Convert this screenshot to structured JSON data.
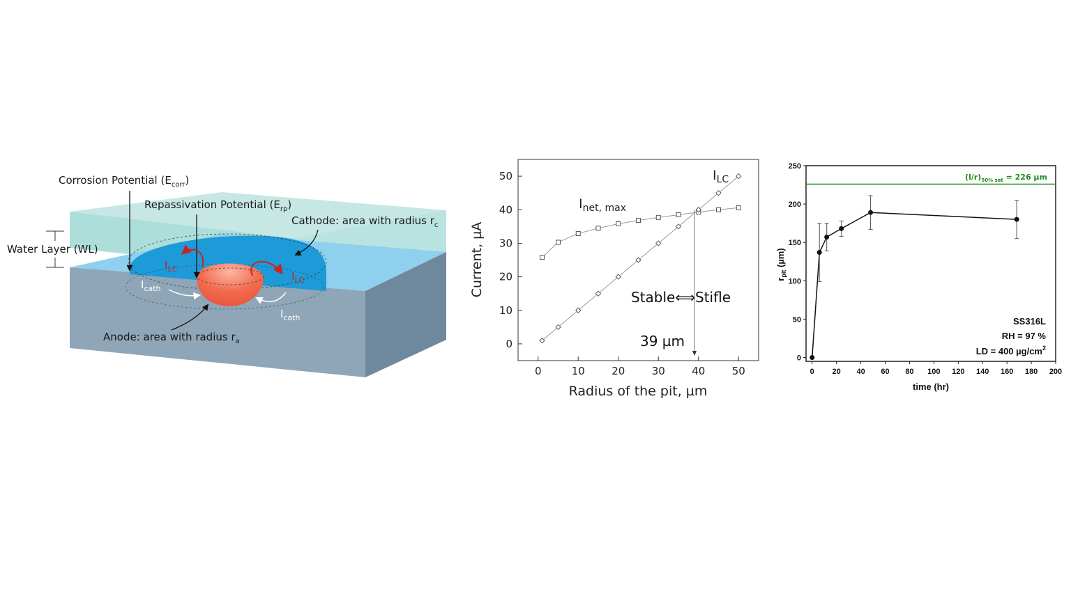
{
  "diagram": {
    "corrosion_potential": "Corrosion Potential (E",
    "corrosion_sub": "corr",
    "corrosion_close": ")",
    "repassivation_potential": "Repassivation Potential (E",
    "repassivation_sub": "rp",
    "repassivation_close": ")",
    "water_layer": "Water Layer (WL)",
    "cathode": "Cathode: area with radius r",
    "cathode_sub": "c",
    "anode": "Anode: area with radius r",
    "anode_sub": "a",
    "i_main": "I",
    "i_lc_sub": "LC",
    "i_cath_sub": "cath",
    "colors": {
      "water": "#9fd9d5",
      "cathode": "#1c9bd8",
      "metal": "#7f98ab",
      "anode": "#f26b4f",
      "current": "#d21f1f"
    }
  },
  "chart_data": [
    {
      "type": "line",
      "xlabel": "Radius of the pit, µm",
      "ylabel": "Current, µA",
      "xlim": [
        -5,
        55
      ],
      "ylim": [
        -5,
        55
      ],
      "xticks": [
        0,
        10,
        20,
        30,
        40,
        50
      ],
      "yticks": [
        0,
        10,
        20,
        30,
        40,
        50
      ],
      "grid": false,
      "series": [
        {
          "name": "I",
          "name_sub": "net, max",
          "marker": "square",
          "x": [
            1,
            5,
            10,
            15,
            20,
            25,
            30,
            35,
            40,
            45,
            50
          ],
          "y": [
            25.8,
            30.3,
            32.9,
            34.5,
            35.8,
            36.8,
            37.7,
            38.5,
            39.3,
            40.0,
            40.6
          ]
        },
        {
          "name": "I",
          "name_sub": "LC",
          "marker": "diamond",
          "x": [
            1,
            5,
            10,
            15,
            20,
            25,
            30,
            35,
            40,
            45,
            50
          ],
          "y": [
            1,
            5,
            10,
            15,
            20,
            25,
            30,
            35,
            40,
            45,
            50
          ]
        }
      ],
      "annotations": {
        "stable_stifle": "Stable⟺Stifle",
        "crossover": "39 µm",
        "crossover_x": 39
      }
    },
    {
      "type": "scatter",
      "xlabel": "time (hr)",
      "ylabel": "r",
      "ylabel_sub": "pit",
      "ylabel_unit": " (µm)",
      "xlim": [
        -5,
        200
      ],
      "ylim": [
        -5,
        250
      ],
      "xticks": [
        0,
        20,
        40,
        60,
        80,
        100,
        120,
        140,
        160,
        180,
        200
      ],
      "yticks": [
        0,
        50,
        100,
        150,
        200,
        250
      ],
      "x": [
        0,
        6,
        12,
        24,
        48,
        168
      ],
      "y": [
        0,
        137,
        157,
        168,
        189,
        180
      ],
      "error": [
        0,
        38,
        18,
        10,
        22,
        25
      ],
      "reference_line": {
        "value": 226,
        "label": "(l/r)",
        "label_sub": "50% sat",
        "label_tail": " = 226 µm",
        "color": "#1e8c1e"
      },
      "legend_lines": [
        "SS316L",
        "RH = 97 %",
        "LD = 400 µg/cm",
        "2"
      ]
    }
  ]
}
